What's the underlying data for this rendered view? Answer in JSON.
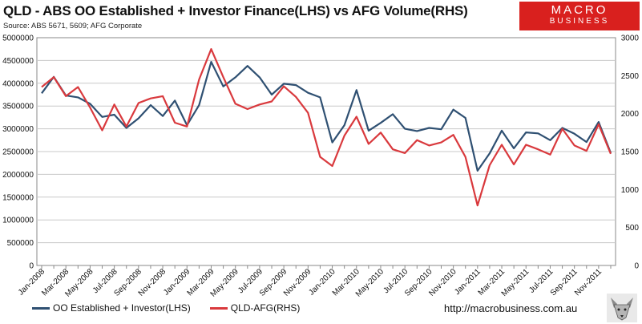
{
  "header": {
    "title": "QLD - ABS OO Established + Investor Finance(LHS) vs AFG Volume(RHS)",
    "source": "Source: ABS 5671, 5609; AFG Corporate"
  },
  "logo": {
    "line1": "MACRO",
    "line2": "BUSINESS"
  },
  "footer": {
    "url": "http://macrobusiness.com.au"
  },
  "colors": {
    "series_lhs": "#2f5072",
    "series_rhs": "#d9393d",
    "grid": "#c8c8c8",
    "logo_bg": "#d9201e"
  },
  "chart_data": {
    "type": "line",
    "title": "QLD - ABS OO Established + Investor Finance(LHS) vs AFG Volume(RHS)",
    "x_tick_labels": [
      "Jan-2008",
      "Mar-2008",
      "May-2008",
      "Jul-2008",
      "Sep-2008",
      "Nov-2008",
      "Jan-2009",
      "Mar-2009",
      "May-2009",
      "Jul-2009",
      "Sep-2009",
      "Nov-2009",
      "Jan-2010",
      "Mar-2010",
      "May-2010",
      "Jul-2010",
      "Sep-2010",
      "Nov-2010",
      "Jan-2011",
      "Mar-2011",
      "May-2011",
      "Jul-2011",
      "Sep-2011",
      "Nov-2011"
    ],
    "x": [
      "Jan-2008",
      "Feb-2008",
      "Mar-2008",
      "Apr-2008",
      "May-2008",
      "Jun-2008",
      "Jul-2008",
      "Aug-2008",
      "Sep-2008",
      "Oct-2008",
      "Nov-2008",
      "Dec-2008",
      "Jan-2009",
      "Feb-2009",
      "Mar-2009",
      "Apr-2009",
      "May-2009",
      "Jun-2009",
      "Jul-2009",
      "Aug-2009",
      "Sep-2009",
      "Oct-2009",
      "Nov-2009",
      "Dec-2009",
      "Jan-2010",
      "Feb-2010",
      "Mar-2010",
      "Apr-2010",
      "May-2010",
      "Jun-2010",
      "Jul-2010",
      "Aug-2010",
      "Sep-2010",
      "Oct-2010",
      "Nov-2010",
      "Dec-2010",
      "Jan-2011",
      "Feb-2011",
      "Mar-2011",
      "Apr-2011",
      "May-2011",
      "Jun-2011",
      "Jul-2011",
      "Aug-2011",
      "Sep-2011",
      "Oct-2011",
      "Nov-2011",
      "Dec-2011"
    ],
    "left_axis": {
      "min": 0,
      "max": 5000000,
      "ticks": [
        "0",
        "500000",
        "1000000",
        "1500000",
        "2000000",
        "2500000",
        "3000000",
        "3500000",
        "4000000",
        "4500000",
        "5000000"
      ]
    },
    "right_axis": {
      "min": 0,
      "max": 3000,
      "ticks": [
        "0",
        "500",
        "1000",
        "1500",
        "2000",
        "2500",
        "3000"
      ]
    },
    "series": [
      {
        "name": "OO Established + Investor(LHS)",
        "axis": "left",
        "values": [
          3780000,
          4140000,
          3730000,
          3690000,
          3550000,
          3260000,
          3310000,
          3020000,
          3230000,
          3520000,
          3280000,
          3620000,
          3080000,
          3520000,
          4470000,
          3930000,
          4130000,
          4380000,
          4130000,
          3750000,
          3990000,
          3960000,
          3790000,
          3690000,
          2700000,
          3080000,
          3850000,
          2960000,
          3130000,
          3320000,
          3000000,
          2950000,
          3020000,
          2990000,
          3420000,
          3240000,
          2080000,
          2460000,
          2960000,
          2570000,
          2920000,
          2900000,
          2750000,
          3020000,
          2890000,
          2710000,
          3150000,
          2470000
        ]
      },
      {
        "name": "QLD-AFG(RHS)",
        "axis": "right",
        "values": [
          2350,
          2480,
          2230,
          2350,
          2080,
          1780,
          2120,
          1830,
          2140,
          2200,
          2230,
          1880,
          1830,
          2450,
          2850,
          2480,
          2130,
          2060,
          2120,
          2160,
          2360,
          2220,
          2010,
          1430,
          1310,
          1710,
          1960,
          1600,
          1750,
          1530,
          1480,
          1650,
          1580,
          1620,
          1720,
          1430,
          790,
          1320,
          1590,
          1330,
          1590,
          1530,
          1460,
          1800,
          1580,
          1510,
          1860,
          1470
        ]
      }
    ]
  }
}
